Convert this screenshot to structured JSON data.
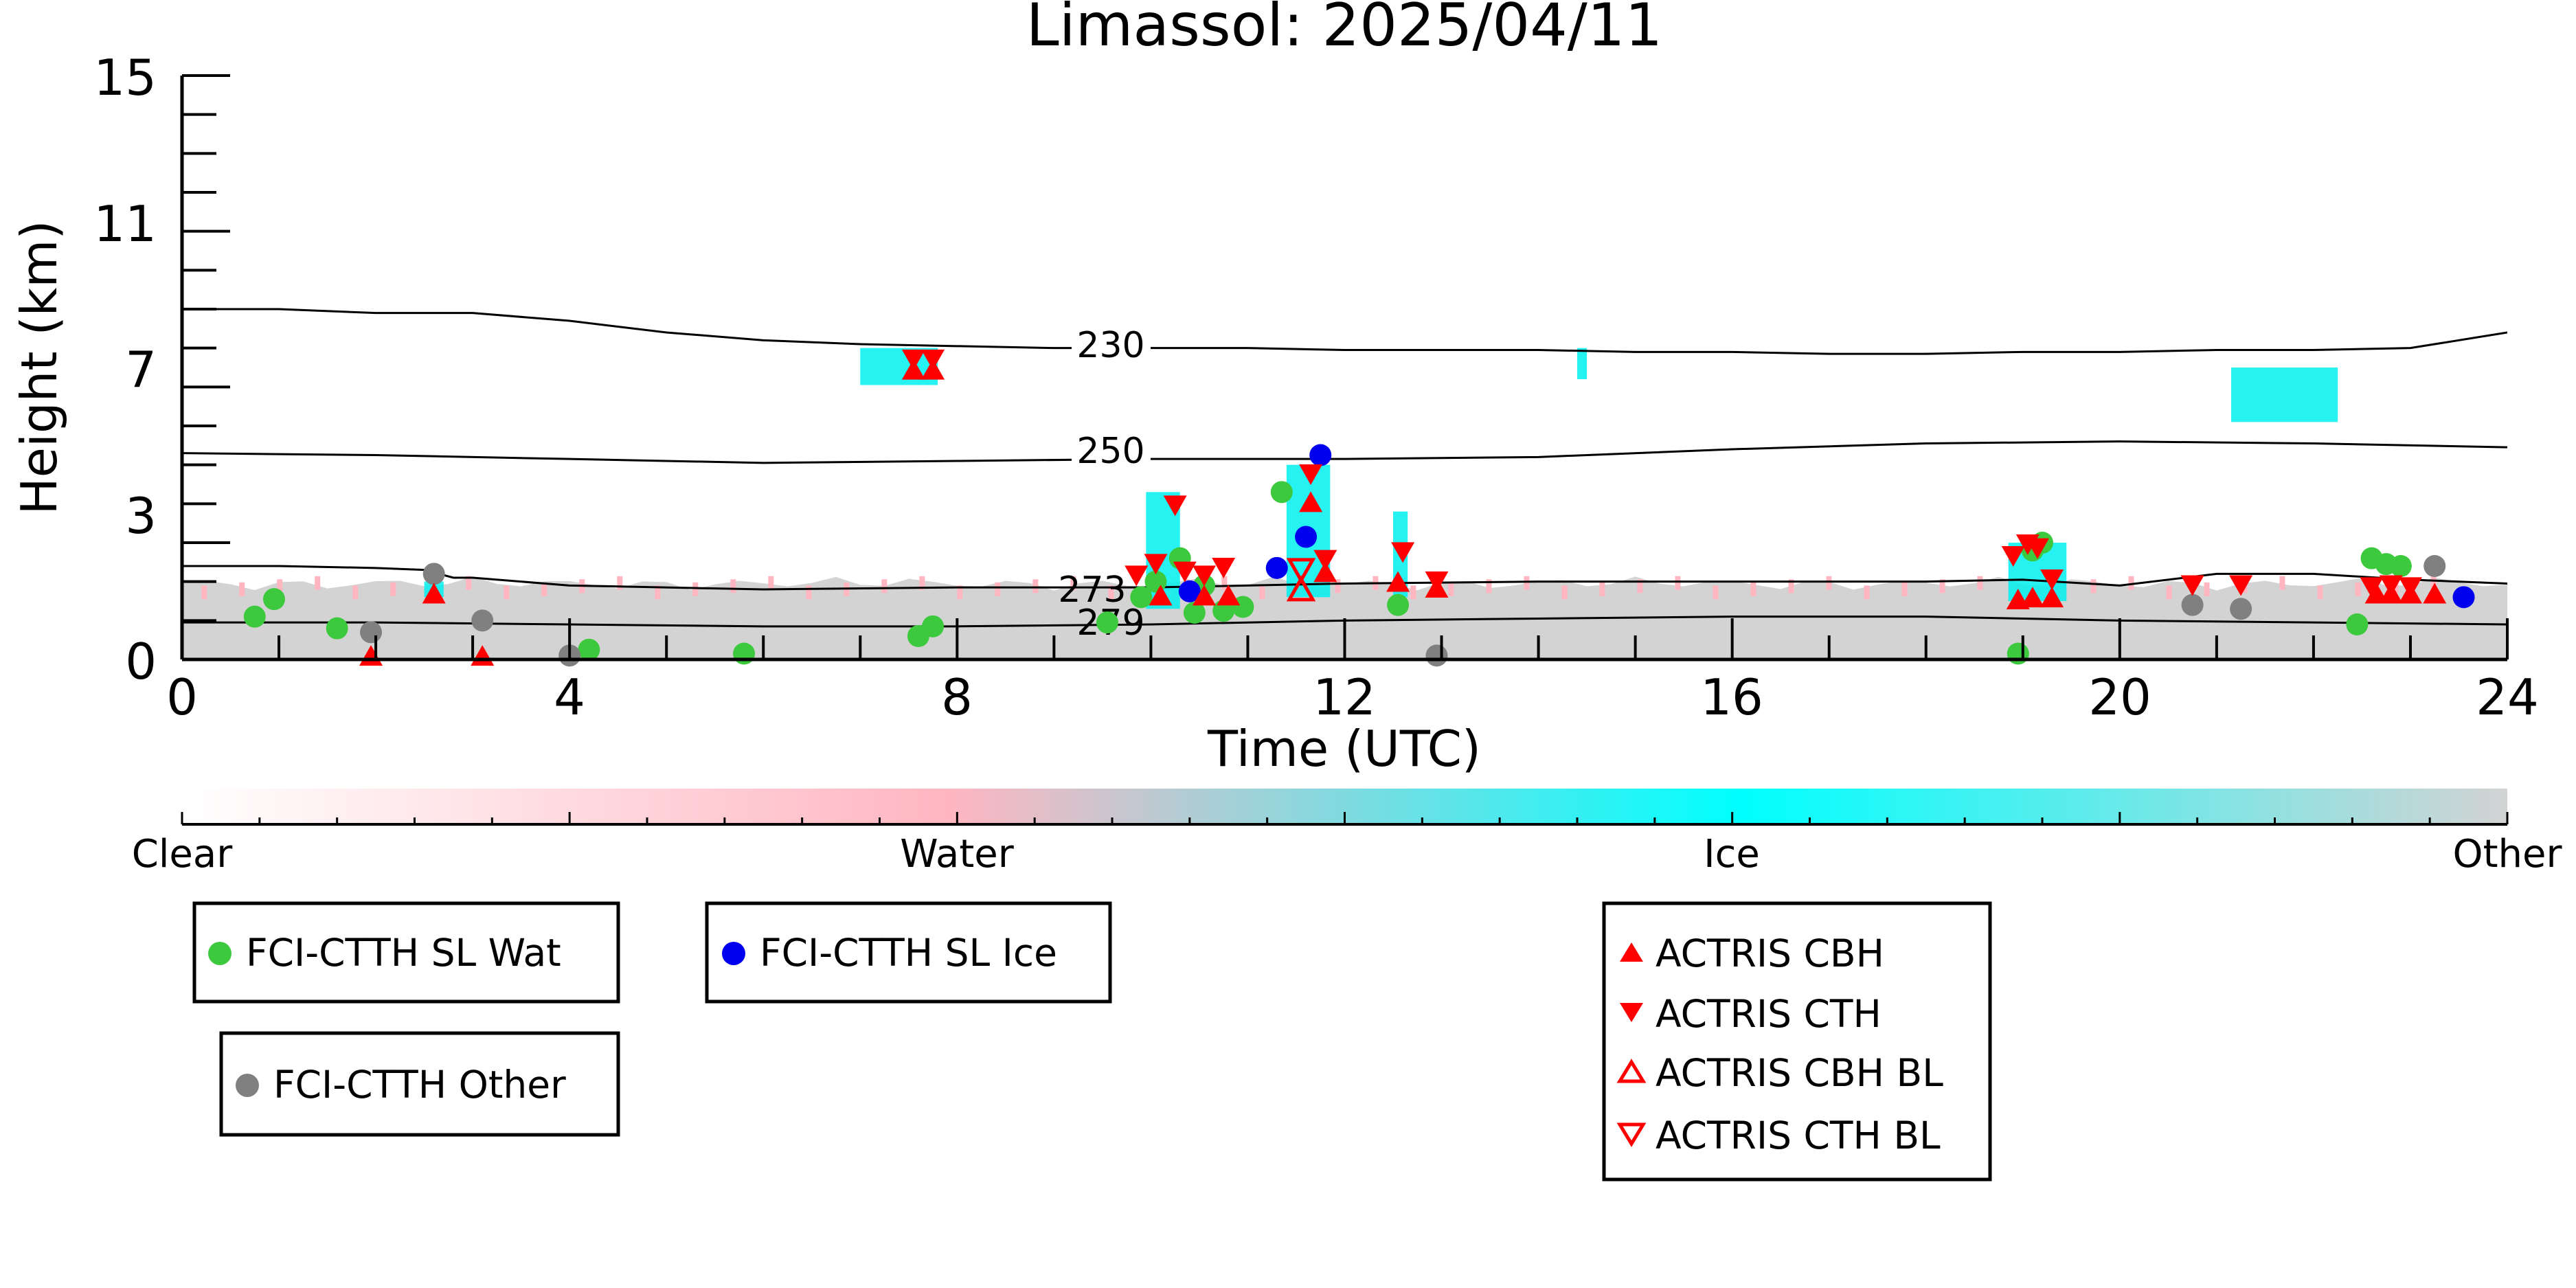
{
  "chart_data": {
    "type": "scatter",
    "title": "Limassol: 2025/04/11",
    "xlabel": "Time (UTC)",
    "ylabel": "Height (km)",
    "xlim": [
      0,
      24
    ],
    "ylim": [
      0,
      15
    ],
    "x_ticks": [
      0,
      4,
      8,
      12,
      16,
      20,
      24
    ],
    "y_ticks": [
      0,
      3,
      7,
      11,
      15
    ],
    "grid": false,
    "colorbar": {
      "labels": [
        "Clear",
        "Water",
        "Ice",
        "Other"
      ],
      "colors": [
        "#ffffff",
        "#ffb6c1",
        "#00ffff",
        "#d3d3d3"
      ]
    },
    "contours": [
      {
        "label": "230",
        "x": [
          0,
          1,
          2,
          3,
          4,
          5,
          6,
          7,
          8,
          9,
          10,
          11,
          12,
          13,
          14,
          15,
          16,
          17,
          18,
          19,
          20,
          21,
          22,
          23,
          24
        ],
        "y": [
          9.0,
          9.0,
          8.9,
          8.9,
          8.7,
          8.4,
          8.2,
          8.1,
          8.05,
          8.0,
          8.0,
          8.0,
          7.95,
          7.95,
          7.95,
          7.9,
          7.9,
          7.85,
          7.85,
          7.9,
          7.9,
          7.95,
          7.95,
          8.0,
          8.4
        ]
      },
      {
        "label": "250",
        "x": [
          0,
          2,
          4,
          6,
          8,
          10,
          12,
          14,
          16,
          18,
          20,
          22,
          24
        ],
        "y": [
          5.3,
          5.25,
          5.15,
          5.05,
          5.1,
          5.15,
          5.15,
          5.2,
          5.4,
          5.55,
          5.6,
          5.55,
          5.45
        ]
      },
      {
        "label": "273",
        "x": [
          0,
          1,
          2,
          2.5,
          2.8,
          3,
          4,
          6,
          8,
          10,
          12,
          14,
          16,
          18,
          19,
          20,
          21,
          22,
          23,
          24
        ],
        "y": [
          2.4,
          2.4,
          2.35,
          2.3,
          2.1,
          2.1,
          1.9,
          1.8,
          1.85,
          1.85,
          1.95,
          2.0,
          2.0,
          2.0,
          2.05,
          1.9,
          2.2,
          2.2,
          2.05,
          1.95
        ]
      },
      {
        "label": "279",
        "x": [
          0,
          2,
          4,
          6,
          8,
          10,
          12,
          14,
          16,
          18,
          20,
          22,
          24
        ],
        "y": [
          0.95,
          0.95,
          0.9,
          0.85,
          0.85,
          0.9,
          1.0,
          1.05,
          1.1,
          1.1,
          1.0,
          0.95,
          0.9
        ]
      }
    ],
    "series": [
      {
        "name": "FCI-CTTH SL Wat",
        "color": "#3dc93d",
        "marker": "circle",
        "x": [
          0.75,
          0.95,
          1.6,
          4.2,
          5.8,
          7.6,
          7.75,
          9.55,
          9.9,
          10.05,
          10.3,
          10.45,
          10.55,
          10.75,
          10.95,
          11.35,
          12.55,
          18.95,
          19.1,
          19.2,
          22.45,
          22.6,
          22.75,
          22.9
        ],
        "y": [
          1.1,
          1.55,
          0.8,
          0.25,
          0.15,
          0.6,
          0.85,
          0.95,
          1.6,
          2.0,
          2.6,
          1.2,
          1.9,
          1.25,
          1.35,
          4.3,
          1.4,
          0.15,
          2.8,
          3.0,
          0.9,
          2.6,
          2.45,
          2.4
        ]
      },
      {
        "name": "FCI-CTTH SL Ice",
        "color": "#0000ee",
        "marker": "circle",
        "x": [
          10.4,
          11.3,
          11.6,
          11.75,
          23.55
        ],
        "y": [
          1.75,
          2.35,
          3.15,
          5.25,
          1.6
        ]
      },
      {
        "name": "FCI-CTTH Other",
        "color": "#808080",
        "marker": "circle",
        "x": [
          1.95,
          2.6,
          3.1,
          4.0,
          12.95,
          20.75,
          21.25,
          23.25
        ],
        "y": [
          0.7,
          2.2,
          1.0,
          0.1,
          0.1,
          1.4,
          1.3,
          2.4
        ]
      },
      {
        "name": "ACTRIS CBH",
        "color": "#ff0000",
        "marker": "triangle-up",
        "x": [
          1.95,
          2.6,
          3.1,
          7.55,
          7.75,
          10.1,
          10.55,
          10.8,
          11.65,
          11.8,
          12.55,
          12.95,
          18.95,
          19.1,
          19.3,
          22.65,
          22.8,
          23.0,
          23.25
        ],
        "y": [
          0.05,
          1.65,
          0.05,
          7.4,
          7.4,
          1.6,
          1.6,
          1.6,
          4.0,
          2.2,
          1.95,
          1.8,
          1.5,
          1.55,
          1.55,
          1.65,
          1.65,
          1.65,
          1.65
        ],
        "filled": true
      },
      {
        "name": "ACTRIS CTH",
        "color": "#ff0000",
        "marker": "triangle-down",
        "x": [
          7.55,
          7.75,
          9.85,
          10.05,
          10.25,
          10.35,
          10.55,
          10.75,
          11.65,
          11.8,
          12.6,
          12.95,
          18.9,
          19.05,
          19.15,
          19.3,
          20.75,
          21.25,
          22.6,
          22.8,
          23.0
        ],
        "y": [
          7.75,
          7.75,
          2.2,
          2.5,
          4.0,
          2.3,
          2.2,
          2.4,
          4.8,
          2.6,
          2.8,
          2.05,
          2.7,
          3.0,
          2.9,
          2.1,
          1.95,
          1.95,
          1.9,
          1.95,
          1.9
        ],
        "filled": true
      },
      {
        "name": "ACTRIS CBH BL",
        "color": "#ff0000",
        "marker": "triangle-up",
        "filled": false,
        "x": [
          11.55
        ],
        "y": [
          1.75
        ]
      },
      {
        "name": "ACTRIS CTH BL",
        "color": "#ff0000",
        "marker": "triangle-down",
        "filled": false,
        "x": [
          11.55
        ],
        "y": [
          2.35
        ]
      }
    ]
  },
  "title": "Limassol: 2025/04/11",
  "xlabel": "Time (UTC)",
  "ylabel": "Height (km)",
  "colorbar_labels": {
    "clear": "Clear",
    "water": "Water",
    "ice": "Ice",
    "other": "Other"
  },
  "contour_labels": {
    "c230": "230",
    "c250": "250",
    "c273": "273",
    "c279": "279"
  },
  "x_tick_labels": [
    "0",
    "4",
    "8",
    "12",
    "16",
    "20",
    "24"
  ],
  "y_tick_labels": [
    "0",
    "3",
    "7",
    "11",
    "15"
  ],
  "legends": {
    "wat": "FCI-CTTH SL Wat",
    "ice": "FCI-CTTH SL Ice",
    "other": "FCI-CTTH Other",
    "cbh": "ACTRIS CBH",
    "cth": "ACTRIS CTH",
    "cbh_bl": "ACTRIS CBH BL",
    "cth_bl": "ACTRIS CTH BL"
  }
}
